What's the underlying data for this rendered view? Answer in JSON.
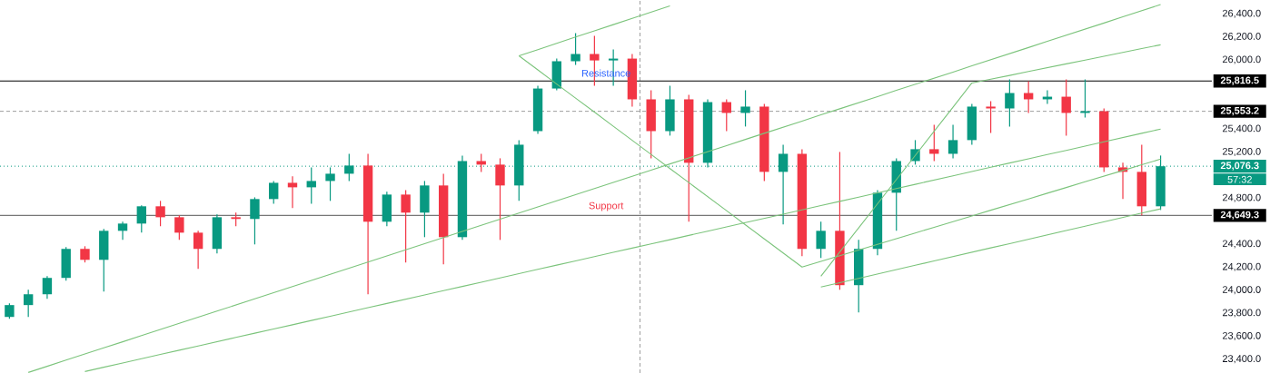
{
  "chart_data": {
    "type": "candlestick",
    "categories": [
      null,
      null,
      null,
      null,
      null,
      null,
      null,
      null,
      null,
      null,
      null,
      null,
      null,
      null,
      null,
      null,
      null,
      null,
      null,
      null,
      null,
      null,
      null,
      null,
      null,
      null,
      null,
      null,
      null,
      null,
      null,
      null,
      null,
      null,
      null,
      null,
      null,
      null,
      null,
      null,
      null,
      null,
      null,
      null,
      null,
      null,
      null,
      null,
      null,
      null,
      null,
      null,
      null,
      null,
      null,
      null,
      null,
      null,
      null,
      null,
      null,
      null
    ],
    "ohlc": [
      [
        23767,
        23885,
        23751,
        23870
      ],
      [
        23870,
        24003,
        23767,
        23964
      ],
      [
        23964,
        24121,
        23925,
        24106
      ],
      [
        24106,
        24373,
        24082,
        24358
      ],
      [
        24358,
        24381,
        24240,
        24263
      ],
      [
        24263,
        24531,
        23988,
        24515
      ],
      [
        24515,
        24594,
        24436,
        24578
      ],
      [
        24578,
        24736,
        24499,
        24728
      ],
      [
        24728,
        24775,
        24555,
        24633
      ],
      [
        24633,
        24649,
        24436,
        24499
      ],
      [
        24499,
        24515,
        24185,
        24358
      ],
      [
        24358,
        24657,
        24318,
        24633
      ],
      [
        24633,
        24673,
        24555,
        24618
      ],
      [
        24618,
        24806,
        24397,
        24791
      ],
      [
        24791,
        24948,
        24751,
        24932
      ],
      [
        24932,
        24988,
        24712,
        24893
      ],
      [
        24893,
        25066,
        24751,
        24948
      ],
      [
        24948,
        25066,
        24775,
        25011
      ],
      [
        25011,
        25184,
        24948,
        25082
      ],
      [
        25082,
        25184,
        23964,
        24594
      ],
      [
        24594,
        24854,
        24555,
        24830
      ],
      [
        24830,
        24869,
        24240,
        24673
      ],
      [
        24673,
        24948,
        24460,
        24909
      ],
      [
        24909,
        25011,
        24224,
        24460
      ],
      [
        24460,
        25169,
        24436,
        25121
      ],
      [
        25121,
        25184,
        25027,
        25090
      ],
      [
        25090,
        25145,
        24436,
        24909
      ],
      [
        24909,
        25303,
        24775,
        25263
      ],
      [
        25381,
        25775,
        25358,
        25751
      ],
      [
        25751,
        26011,
        25736,
        25988
      ],
      [
        25988,
        26232,
        25956,
        26051
      ],
      [
        26051,
        26208,
        25775,
        25995
      ],
      [
        25995,
        26090,
        25775,
        26011
      ],
      [
        26011,
        26051,
        25594,
        25657
      ],
      [
        25657,
        25736,
        25145,
        25381
      ],
      [
        25381,
        25775,
        25342,
        25657
      ],
      [
        25657,
        25696,
        24594,
        25106
      ],
      [
        25106,
        25657,
        25066,
        25633
      ],
      [
        25633,
        25657,
        25381,
        25539
      ],
      [
        25539,
        25736,
        25421,
        25594
      ],
      [
        25594,
        25617,
        24948,
        25027
      ],
      [
        25027,
        25263,
        24570,
        25184
      ],
      [
        25184,
        25224,
        24295,
        24358
      ],
      [
        24358,
        24594,
        24279,
        24515
      ],
      [
        24515,
        25200,
        24003,
        24043
      ],
      [
        24043,
        24436,
        23807,
        24358
      ],
      [
        24358,
        24869,
        24303,
        24846
      ],
      [
        24846,
        25145,
        24515,
        25121
      ],
      [
        25121,
        25303,
        25090,
        25224
      ],
      [
        25224,
        25436,
        25121,
        25184
      ],
      [
        25184,
        25436,
        25145,
        25303
      ],
      [
        25303,
        25617,
        25263,
        25594
      ],
      [
        25594,
        25641,
        25366,
        25578
      ],
      [
        25578,
        25830,
        25421,
        25712
      ],
      [
        25712,
        25814,
        25539,
        25657
      ],
      [
        25657,
        25736,
        25617,
        25680
      ],
      [
        25680,
        25830,
        25342,
        25539
      ],
      [
        25539,
        25830,
        25499,
        25554
      ],
      [
        25554,
        25578,
        25027,
        25066
      ],
      [
        25066,
        25106,
        24791,
        25027
      ],
      [
        25027,
        25263,
        24650,
        24728
      ],
      [
        24728,
        25169,
        24696,
        25076
      ]
    ],
    "colors": [
      "#089981",
      "#089981",
      "#089981",
      "#089981",
      "#f23645",
      "#089981",
      "#089981",
      "#089981",
      "#f23645",
      "#f23645",
      "#f23645",
      "#089981",
      "#f23645",
      "#089981",
      "#089981",
      "#f23645",
      "#089981",
      "#089981",
      "#089981",
      "#f23645",
      "#089981",
      "#f23645",
      "#089981",
      "#f23645",
      "#089981",
      "#f23645",
      "#f23645",
      "#089981",
      "#089981",
      "#089981",
      "#089981",
      "#f23645",
      "#089981",
      "#f23645",
      "#f23645",
      "#089981",
      "#f23645",
      "#089981",
      "#f23645",
      "#089981",
      "#f23645",
      "#089981",
      "#f23645",
      "#089981",
      "#f23645",
      "#089981",
      "#089981",
      "#089981",
      "#089981",
      "#f23645",
      "#089981",
      "#089981",
      "#f23645",
      "#089981",
      "#f23645",
      "#089981",
      "#f23645",
      "#089981",
      "#f23645",
      "#f23645",
      "#f23645",
      "#089981"
    ],
    "series": [
      {
        "type": "line",
        "color": "#7cc47c",
        "values": [
          null,
          23285,
          23338,
          23392,
          23445,
          23498,
          23551,
          23605,
          23658,
          23711,
          23764,
          23818,
          23871,
          23924,
          23977,
          24031,
          24084,
          24137,
          24190,
          24244,
          24297,
          24350,
          24403,
          24457,
          24510,
          24563,
          24616,
          24670,
          24723,
          24776,
          24829,
          24883,
          24936,
          24989,
          25042,
          25096,
          25149,
          25202,
          25255,
          25309,
          25362,
          25415,
          25468,
          25522,
          25575,
          25628,
          25681,
          25735,
          25788,
          25841,
          25894,
          25948,
          26001,
          26054,
          26107,
          26161,
          26214,
          26267,
          26320,
          26374,
          26427,
          26480
        ]
      },
      {
        "type": "line",
        "color": "#7cc47c",
        "values": [
          null,
          null,
          null,
          null,
          23293,
          23330,
          23367,
          23404,
          23441,
          23478,
          23515,
          23552,
          23589,
          23626,
          23663,
          23699,
          23736,
          23773,
          23810,
          23847,
          23884,
          23921,
          23958,
          23995,
          24032,
          24069,
          24106,
          24143,
          24180,
          24217,
          24254,
          24291,
          24328,
          24365,
          24402,
          24438,
          24475,
          24512,
          24549,
          24586,
          24623,
          24660,
          24697,
          24734,
          24771,
          24808,
          24845,
          24882,
          24919,
          24956,
          24993,
          25030,
          25067,
          25104,
          25141,
          25178,
          25214,
          25251,
          25288,
          25325,
          25362,
          25399
        ]
      },
      {
        "type": "line",
        "color": "#7cc47c",
        "values": [
          null,
          null,
          null,
          null,
          null,
          null,
          null,
          null,
          null,
          null,
          null,
          null,
          null,
          null,
          null,
          null,
          null,
          null,
          null,
          null,
          null,
          null,
          null,
          null,
          null,
          null,
          null,
          26035,
          26089,
          26144,
          26198,
          26252,
          26306,
          26361,
          26415,
          26469,
          null,
          null,
          null,
          null,
          null,
          null,
          null,
          null,
          null,
          null,
          null,
          null,
          null,
          null,
          null,
          null,
          null,
          null,
          null,
          null,
          null,
          null,
          null,
          null,
          null,
          null
        ]
      },
      {
        "type": "line",
        "color": "#7cc47c",
        "values": [
          null,
          null,
          null,
          null,
          null,
          null,
          null,
          null,
          null,
          null,
          null,
          null,
          null,
          null,
          null,
          null,
          null,
          null,
          null,
          null,
          null,
          null,
          null,
          null,
          null,
          null,
          null,
          26035,
          25913,
          25790,
          25668,
          25546,
          25423,
          25301,
          25179,
          25056,
          24934,
          24812,
          24690,
          24567,
          24445,
          24323,
          24200,
          24249,
          24299,
          24348,
          24397,
          24447,
          24496,
          24546,
          24595,
          24644,
          24694,
          24743,
          24792,
          24842,
          24891,
          24941,
          24990,
          25039,
          25089,
          25138
        ]
      },
      {
        "type": "line",
        "color": "#7cc47c",
        "values": [
          null,
          null,
          null,
          null,
          null,
          null,
          null,
          null,
          null,
          null,
          null,
          null,
          null,
          null,
          null,
          null,
          null,
          null,
          null,
          null,
          null,
          null,
          null,
          null,
          null,
          null,
          null,
          null,
          null,
          null,
          null,
          null,
          null,
          null,
          null,
          null,
          null,
          null,
          null,
          null,
          null,
          null,
          null,
          24121,
          24331,
          24541,
          24750,
          24960,
          25170,
          25380,
          25589,
          25799,
          25832,
          25865,
          25899,
          25932,
          25965,
          25998,
          26031,
          26065,
          26098,
          26131
        ]
      },
      {
        "type": "line",
        "color": "#7cc47c",
        "values": [
          null,
          null,
          null,
          null,
          null,
          null,
          null,
          null,
          null,
          null,
          null,
          null,
          null,
          null,
          null,
          null,
          null,
          null,
          null,
          null,
          null,
          null,
          null,
          null,
          null,
          null,
          null,
          null,
          null,
          null,
          null,
          null,
          null,
          null,
          null,
          null,
          null,
          null,
          null,
          null,
          null,
          null,
          null,
          24027,
          24065,
          24102,
          24140,
          24178,
          24216,
          24253,
          24291,
          24329,
          24367,
          24404,
          24442,
          24480,
          24518,
          24555,
          24593,
          24631,
          24669,
          24706
        ]
      }
    ],
    "ylim": [
      23280,
      26520
    ],
    "yticks": [
      {
        "value": 23400,
        "label": "23,400.0"
      },
      {
        "value": 23600,
        "label": "23,600.0"
      },
      {
        "value": 23800,
        "label": "23,800.0"
      },
      {
        "value": 24000,
        "label": "24,000.0"
      },
      {
        "value": 24200,
        "label": "24,200.0"
      },
      {
        "value": 24400,
        "label": "24,400.0"
      },
      {
        "value": 24800,
        "label": "24,800.0"
      },
      {
        "value": 25200,
        "label": "25,200.0"
      },
      {
        "value": 25400,
        "label": "25,400.0"
      },
      {
        "value": 26000,
        "label": "26,000.0"
      },
      {
        "value": 26200,
        "label": "26,200.0"
      },
      {
        "value": 26400,
        "label": "26,400.0"
      }
    ],
    "tick_labels": "y",
    "ref_lines": [
      {
        "axis": "y",
        "value": 25816.5,
        "label": "25,816.5",
        "color": "#000000",
        "line_style": "solid"
      },
      {
        "axis": "y",
        "value": 25553.2,
        "label": "25,553.2",
        "color": "#9e9e9e",
        "line_style": "dashed"
      },
      {
        "axis": "y",
        "value": 24649.3,
        "label": "24,649.3",
        "color": "#555555",
        "line_style": "solid"
      },
      {
        "axis": "y",
        "value": 25076.3,
        "label": "25,076.3",
        "color": "#089981",
        "line_style": "dotted"
      }
    ],
    "annotations": [
      "Resistance",
      "Support",
      "57:32"
    ]
  }
}
